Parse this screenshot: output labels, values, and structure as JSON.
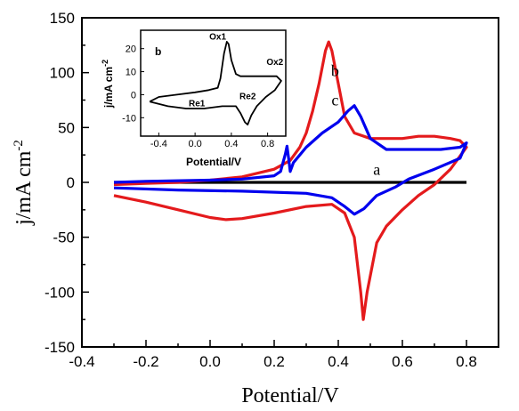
{
  "chart_data": [
    {
      "type": "line",
      "xlabel": "Potential/V",
      "ylabel_main": "j/mA cm",
      "ylabel_sup": "-2",
      "xlim": [
        -0.4,
        0.9
      ],
      "ylim": [
        -150,
        150
      ],
      "xticks": [
        "-0.4",
        "-0.2",
        "0.0",
        "0.2",
        "0.4",
        "0.6",
        "0.8"
      ],
      "yticks": [
        "150",
        "100",
        "50",
        "0",
        "-50",
        "-100",
        "-150"
      ],
      "xtick_values": [
        -0.4,
        -0.2,
        0.0,
        0.2,
        0.4,
        0.6,
        0.8
      ],
      "ytick_values": [
        150,
        100,
        50,
        0,
        -50,
        -100,
        -150
      ],
      "curve_labels": [
        {
          "text": "a",
          "x": 0.52,
          "y": 7
        },
        {
          "text": "b",
          "x": 0.39,
          "y": 97
        },
        {
          "text": "c",
          "x": 0.39,
          "y": 70
        }
      ],
      "series": [
        {
          "label": "a",
          "color": "#000000",
          "points": [
            [
              -0.3,
              0
            ],
            [
              0.0,
              0
            ],
            [
              0.3,
              0
            ],
            [
              0.6,
              0
            ],
            [
              0.8,
              0
            ]
          ]
        },
        {
          "label": "b",
          "color": "#e41a1c",
          "points": [
            [
              -0.3,
              -12
            ],
            [
              -0.2,
              -18
            ],
            [
              -0.1,
              -25
            ],
            [
              0.0,
              -32
            ],
            [
              0.05,
              -34
            ],
            [
              0.1,
              -33
            ],
            [
              0.2,
              -28
            ],
            [
              0.3,
              -22
            ],
            [
              0.38,
              -20
            ],
            [
              0.42,
              -28
            ],
            [
              0.45,
              -50
            ],
            [
              0.47,
              -100
            ],
            [
              0.478,
              -125
            ],
            [
              0.49,
              -100
            ],
            [
              0.52,
              -55
            ],
            [
              0.55,
              -40
            ],
            [
              0.6,
              -25
            ],
            [
              0.65,
              -12
            ],
            [
              0.7,
              -2
            ],
            [
              0.75,
              12
            ],
            [
              0.8,
              32
            ],
            [
              0.78,
              38
            ],
            [
              0.75,
              40
            ],
            [
              0.7,
              42
            ],
            [
              0.65,
              42
            ],
            [
              0.6,
              40
            ],
            [
              0.5,
              40
            ],
            [
              0.45,
              45
            ],
            [
              0.42,
              60
            ],
            [
              0.4,
              90
            ],
            [
              0.38,
              120
            ],
            [
              0.37,
              128
            ],
            [
              0.36,
              120
            ],
            [
              0.34,
              90
            ],
            [
              0.32,
              65
            ],
            [
              0.3,
              45
            ],
            [
              0.28,
              32
            ],
            [
              0.25,
              20
            ],
            [
              0.2,
              12
            ],
            [
              0.1,
              5
            ],
            [
              0.0,
              2
            ],
            [
              -0.1,
              0
            ],
            [
              -0.2,
              -1
            ],
            [
              -0.3,
              -2
            ]
          ]
        },
        {
          "label": "c",
          "color": "#0000ee",
          "points": [
            [
              -0.3,
              -5
            ],
            [
              -0.1,
              -7
            ],
            [
              0.1,
              -8
            ],
            [
              0.3,
              -10
            ],
            [
              0.38,
              -14
            ],
            [
              0.42,
              -22
            ],
            [
              0.45,
              -29
            ],
            [
              0.48,
              -24
            ],
            [
              0.52,
              -12
            ],
            [
              0.58,
              -4
            ],
            [
              0.62,
              3
            ],
            [
              0.7,
              12
            ],
            [
              0.78,
              22
            ],
            [
              0.8,
              36
            ],
            [
              0.78,
              32
            ],
            [
              0.72,
              30
            ],
            [
              0.65,
              30
            ],
            [
              0.55,
              30
            ],
            [
              0.5,
              40
            ],
            [
              0.47,
              60
            ],
            [
              0.45,
              70
            ],
            [
              0.43,
              65
            ],
            [
              0.4,
              55
            ],
            [
              0.35,
              45
            ],
            [
              0.3,
              32
            ],
            [
              0.26,
              18
            ],
            [
              0.25,
              10
            ],
            [
              0.245,
              22
            ],
            [
              0.24,
              33
            ],
            [
              0.235,
              26
            ],
            [
              0.22,
              10
            ],
            [
              0.2,
              6
            ],
            [
              0.1,
              3
            ],
            [
              0.0,
              2
            ],
            [
              -0.2,
              1
            ],
            [
              -0.3,
              0
            ]
          ]
        }
      ]
    },
    {
      "type": "line",
      "inset": true,
      "panel_label": "b",
      "xlabel": "Potential/V",
      "ylabel_main": "j/mA cm",
      "ylabel_sup": "-2",
      "xlim": [
        -0.6,
        1.0
      ],
      "ylim": [
        -18,
        28
      ],
      "xticks": [
        "-0.4",
        "0.0",
        "0.4",
        "0.8"
      ],
      "yticks": [
        "20",
        "10",
        "0",
        "-10"
      ],
      "xtick_values": [
        -0.4,
        0.0,
        0.4,
        0.8
      ],
      "ytick_values": [
        20,
        10,
        0,
        -10
      ],
      "annotations": [
        {
          "text": "Ox1",
          "x": 0.25,
          "y": 24
        },
        {
          "text": "Ox2",
          "x": 0.88,
          "y": 13
        },
        {
          "text": "Re1",
          "x": 0.02,
          "y": -5
        },
        {
          "text": "Re2",
          "x": 0.58,
          "y": -2
        }
      ],
      "series": [
        {
          "color": "#000000",
          "points": [
            [
              -0.5,
              -3
            ],
            [
              -0.3,
              -5
            ],
            [
              -0.1,
              -6
            ],
            [
              0.1,
              -6
            ],
            [
              0.3,
              -5
            ],
            [
              0.45,
              -5
            ],
            [
              0.5,
              -8
            ],
            [
              0.55,
              -12
            ],
            [
              0.58,
              -13
            ],
            [
              0.62,
              -9
            ],
            [
              0.68,
              -5
            ],
            [
              0.78,
              -1
            ],
            [
              0.88,
              2
            ],
            [
              0.95,
              6
            ],
            [
              0.9,
              8
            ],
            [
              0.85,
              8
            ],
            [
              0.75,
              8
            ],
            [
              0.6,
              8
            ],
            [
              0.5,
              8
            ],
            [
              0.45,
              9
            ],
            [
              0.4,
              15
            ],
            [
              0.37,
              22
            ],
            [
              0.35,
              23
            ],
            [
              0.32,
              18
            ],
            [
              0.28,
              7
            ],
            [
              0.25,
              3
            ],
            [
              0.15,
              2
            ],
            [
              0.0,
              1
            ],
            [
              -0.2,
              0
            ],
            [
              -0.4,
              -1
            ],
            [
              -0.5,
              -3
            ]
          ]
        }
      ]
    }
  ]
}
